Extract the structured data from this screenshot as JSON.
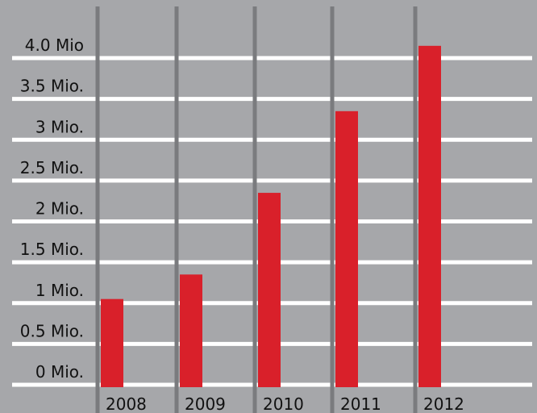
{
  "chart_data": {
    "type": "bar",
    "title": "",
    "xlabel": "",
    "ylabel": "",
    "categories": [
      "2008",
      "2009",
      "2010",
      "2011",
      "2012"
    ],
    "values": [
      1.05,
      1.35,
      2.35,
      3.35,
      4.15
    ],
    "ylim": [
      0,
      4.0
    ],
    "yticks": [
      0,
      0.5,
      1,
      1.5,
      2,
      2.5,
      3,
      3.5,
      4.0
    ],
    "ytick_labels": [
      "0 Mio.",
      "0.5 Mio.",
      "1 Mio.",
      "1.5 Mio.",
      "2 Mio.",
      "2.5 Mio.",
      "3 Mio.",
      "3.5 Mio.",
      "4.0 Mio"
    ],
    "grid": true,
    "legend": "none",
    "colors": {
      "background": "#a6a7aa",
      "bar": "#d9202a",
      "gridline": "#ffffff",
      "category_separator": "#7a7b7e",
      "text": "#111111"
    }
  }
}
